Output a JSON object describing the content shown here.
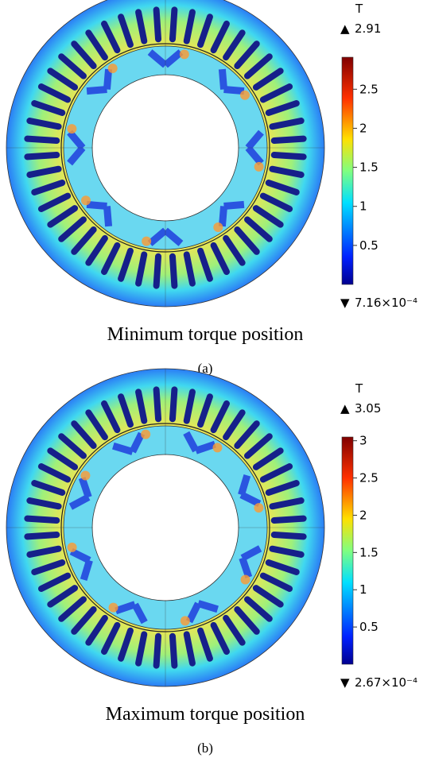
{
  "panels": [
    {
      "unit": "T",
      "max": 2.91,
      "min": {
        "value": 0.000716,
        "label": "7.16×10⁻⁴"
      },
      "ticks": [
        2.5,
        2,
        1.5,
        1,
        0.5
      ],
      "caption": "Minimum torque position",
      "label": "(a)"
    },
    {
      "unit": "T",
      "max": 3.05,
      "min": {
        "value": 0.000267,
        "label": "2.67×10⁻⁴"
      },
      "ticks": [
        3,
        2.5,
        2,
        1.5,
        1,
        0.5
      ],
      "caption": "Maximum torque position",
      "label": "(b)"
    }
  ]
}
